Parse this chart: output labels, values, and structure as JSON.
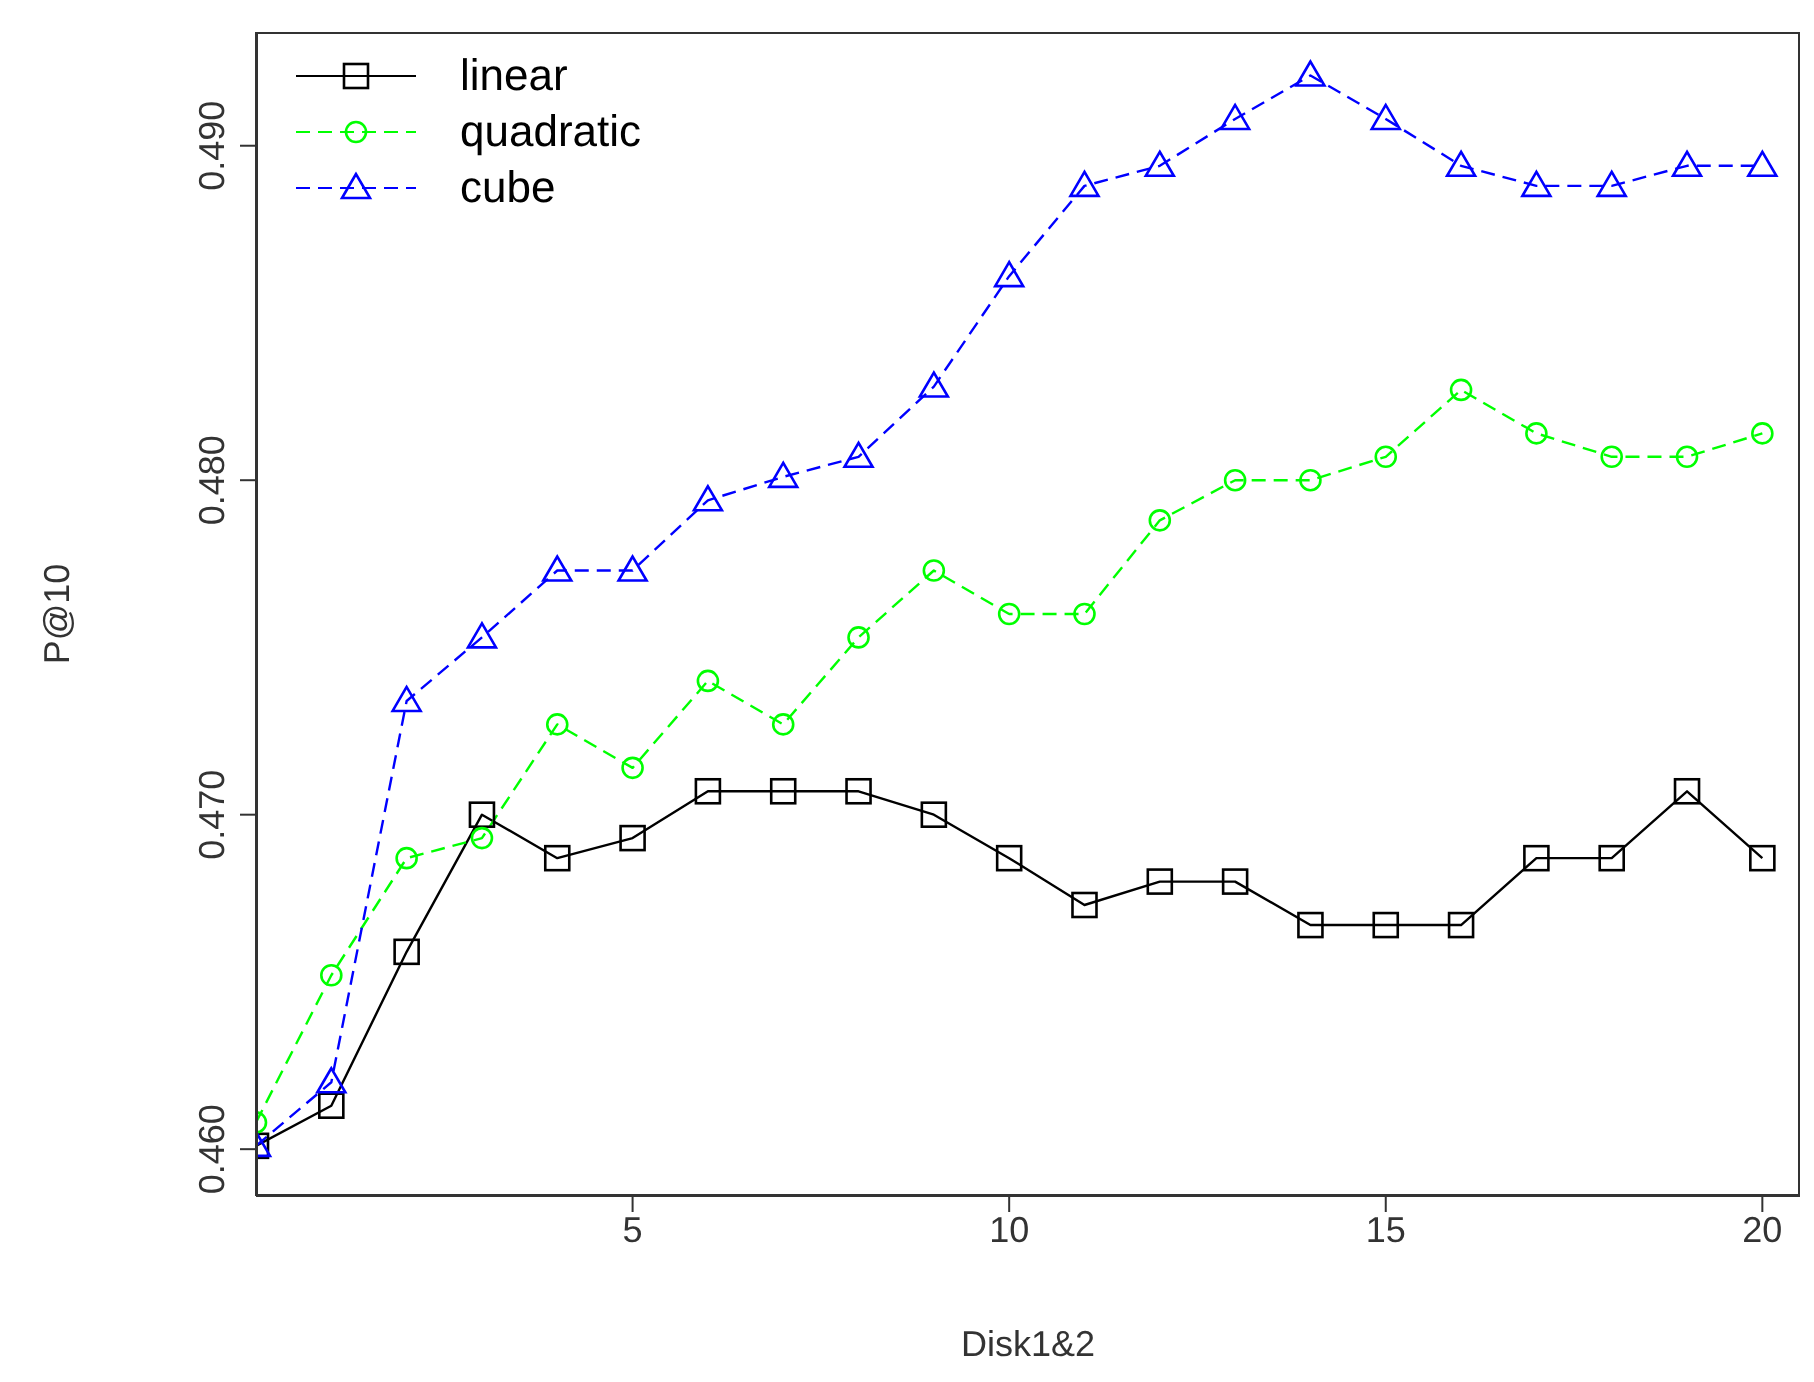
{
  "chart_data": {
    "type": "line",
    "xlabel": "Disk1&2",
    "ylabel": "P@10",
    "x": [
      0,
      1,
      2,
      3,
      4,
      5,
      6,
      7,
      8,
      9,
      10,
      11,
      12,
      13,
      14,
      15,
      16,
      17,
      18,
      19,
      20
    ],
    "series": [
      {
        "name": "linear",
        "color": "#000000",
        "marker": "square",
        "line_style": "solid",
        "values": [
          0.4601,
          0.4613,
          0.4659,
          0.47,
          0.4687,
          0.4693,
          0.4707,
          0.4707,
          0.4707,
          0.47,
          0.4687,
          0.4673,
          0.468,
          0.468,
          0.4667,
          0.4667,
          0.4667,
          0.4687,
          0.4687,
          0.4707,
          0.4687
        ]
      },
      {
        "name": "quadratic",
        "color": "#00ff00",
        "marker": "circle",
        "line_style": "dashed",
        "values": [
          0.4608,
          0.4652,
          0.4687,
          0.4693,
          0.4727,
          0.4714,
          0.474,
          0.4727,
          0.4753,
          0.4773,
          0.476,
          0.476,
          0.4788,
          0.48,
          0.48,
          0.4807,
          0.4827,
          0.4814,
          0.4807,
          0.4807,
          0.4814
        ]
      },
      {
        "name": "cube",
        "color": "#0000ff",
        "marker": "triangle",
        "line_style": "dashed",
        "values": [
          0.4601,
          0.462,
          0.4734,
          0.4753,
          0.4773,
          0.4773,
          0.4794,
          0.4801,
          0.4807,
          0.4828,
          0.4861,
          0.4888,
          0.4894,
          0.4908,
          0.4921,
          0.4908,
          0.4894,
          0.4888,
          0.4888,
          0.4894,
          0.4894
        ]
      }
    ],
    "xlim": [
      0,
      20.5
    ],
    "xticks": [
      5,
      10,
      15,
      20
    ],
    "ylim": [
      0.4586,
      0.4934
    ],
    "yticks": [
      {
        "value": 0.46,
        "label": "0.460"
      },
      {
        "value": 0.47,
        "label": "0.470"
      },
      {
        "value": 0.48,
        "label": "0.480"
      },
      {
        "value": 0.49,
        "label": "0.490"
      }
    ],
    "grid": false,
    "legend": "top left"
  }
}
